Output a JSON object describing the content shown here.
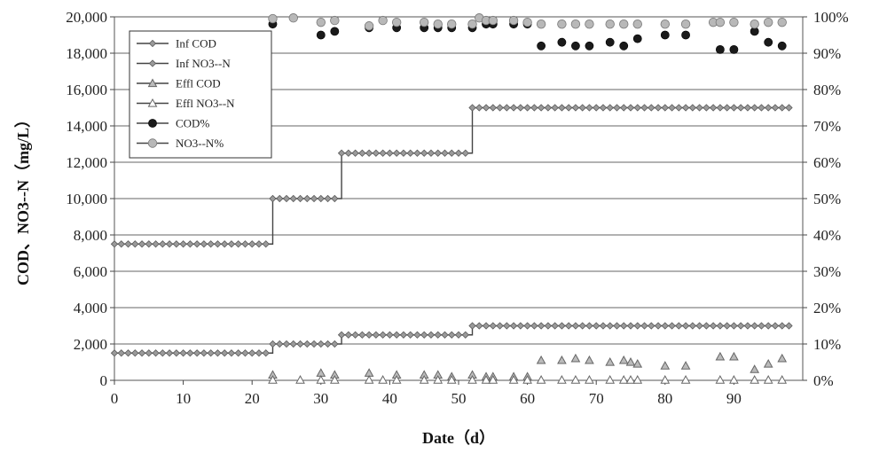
{
  "chart_data": {
    "type": "scatter",
    "xlabel": "Date（d）",
    "ylabel_left": "COD、NO3--N（mg/L）",
    "ylabel_right": "",
    "xlim": [
      0,
      100
    ],
    "ylim_left": [
      0,
      20000
    ],
    "ylim_right": [
      0,
      1
    ],
    "x_ticks": [
      0,
      10,
      20,
      30,
      40,
      50,
      60,
      70,
      80,
      90
    ],
    "y_left_ticks": [
      "0",
      "2,000",
      "4,000",
      "6,000",
      "8,000",
      "10,000",
      "12,000",
      "14,000",
      "16,000",
      "18,000",
      "20,000"
    ],
    "y_right_ticks": [
      "0%",
      "10%",
      "20%",
      "30%",
      "40%",
      "50%",
      "60%",
      "70%",
      "80%",
      "90%",
      "100%"
    ],
    "grid": "horizontal",
    "legend_position": "top-left",
    "series": [
      {
        "name": "Inf COD",
        "axis": "left",
        "style": "line-diamond",
        "color": "#777777",
        "steps": [
          {
            "from": 0,
            "to": 23,
            "value": 7500
          },
          {
            "from": 23,
            "to": 33,
            "value": 10000
          },
          {
            "from": 33,
            "to": 52,
            "value": 12500
          },
          {
            "from": 52,
            "to": 98,
            "value": 15000
          }
        ]
      },
      {
        "name": "Inf NO3--N",
        "axis": "left",
        "style": "line-diamond",
        "color": "#777777",
        "steps": [
          {
            "from": 0,
            "to": 23,
            "value": 1500
          },
          {
            "from": 23,
            "to": 33,
            "value": 2000
          },
          {
            "from": 33,
            "to": 52,
            "value": 2500
          },
          {
            "from": 52,
            "to": 98,
            "value": 3000
          }
        ]
      },
      {
        "name": "Effl COD",
        "axis": "left",
        "style": "triangle-filled",
        "color": "#888888",
        "x": [
          23,
          30,
          32,
          37,
          41,
          45,
          47,
          49,
          52,
          54,
          55,
          58,
          60,
          62,
          65,
          67,
          69,
          72,
          74,
          75,
          76,
          80,
          83,
          88,
          90,
          93,
          95,
          97
        ],
        "y": [
          300,
          400,
          300,
          400,
          300,
          300,
          300,
          200,
          300,
          200,
          200,
          200,
          200,
          1100,
          1100,
          1200,
          1100,
          1000,
          1100,
          1000,
          900,
          800,
          800,
          1300,
          1300,
          600,
          900,
          1200
        ]
      },
      {
        "name": "Effl NO3--N",
        "axis": "left",
        "style": "triangle-open",
        "color": "#888888",
        "x": [
          23,
          27,
          30,
          32,
          37,
          39,
          41,
          45,
          47,
          49,
          52,
          54,
          55,
          58,
          60,
          62,
          65,
          67,
          69,
          72,
          74,
          75,
          76,
          80,
          83,
          88,
          90,
          93,
          95,
          97
        ],
        "y": [
          20,
          20,
          20,
          20,
          20,
          20,
          20,
          20,
          20,
          20,
          20,
          20,
          20,
          20,
          20,
          20,
          20,
          20,
          20,
          20,
          20,
          20,
          20,
          20,
          20,
          20,
          20,
          20,
          20,
          20
        ]
      },
      {
        "name": "COD%",
        "axis": "right",
        "style": "dot-dark",
        "color": "#1a1a1a",
        "x": [
          23,
          30,
          32,
          37,
          41,
          45,
          47,
          49,
          52,
          54,
          55,
          58,
          60,
          62,
          65,
          67,
          69,
          72,
          74,
          76,
          80,
          83,
          88,
          90,
          93,
          95,
          97
        ],
        "y": [
          0.98,
          0.95,
          0.96,
          0.97,
          0.97,
          0.97,
          0.97,
          0.97,
          0.97,
          0.98,
          0.98,
          0.98,
          0.98,
          0.92,
          0.93,
          0.92,
          0.92,
          0.93,
          0.92,
          0.94,
          0.95,
          0.95,
          0.91,
          0.91,
          0.96,
          0.93,
          0.92
        ]
      },
      {
        "name": "NO3--N%",
        "axis": "right",
        "style": "dot-light",
        "color": "#aaaaaa",
        "x": [
          23,
          26,
          30,
          32,
          37,
          39,
          41,
          45,
          47,
          49,
          52,
          53,
          54,
          55,
          58,
          60,
          62,
          65,
          67,
          69,
          72,
          74,
          76,
          80,
          83,
          87,
          88,
          90,
          93,
          95,
          97
        ],
        "y": [
          0.995,
          0.997,
          0.985,
          0.99,
          0.975,
          0.99,
          0.985,
          0.985,
          0.98,
          0.98,
          0.98,
          0.997,
          0.99,
          0.99,
          0.99,
          0.985,
          0.98,
          0.98,
          0.98,
          0.98,
          0.98,
          0.98,
          0.98,
          0.98,
          0.98,
          0.985,
          0.985,
          0.985,
          0.98,
          0.985,
          0.985
        ]
      }
    ]
  }
}
